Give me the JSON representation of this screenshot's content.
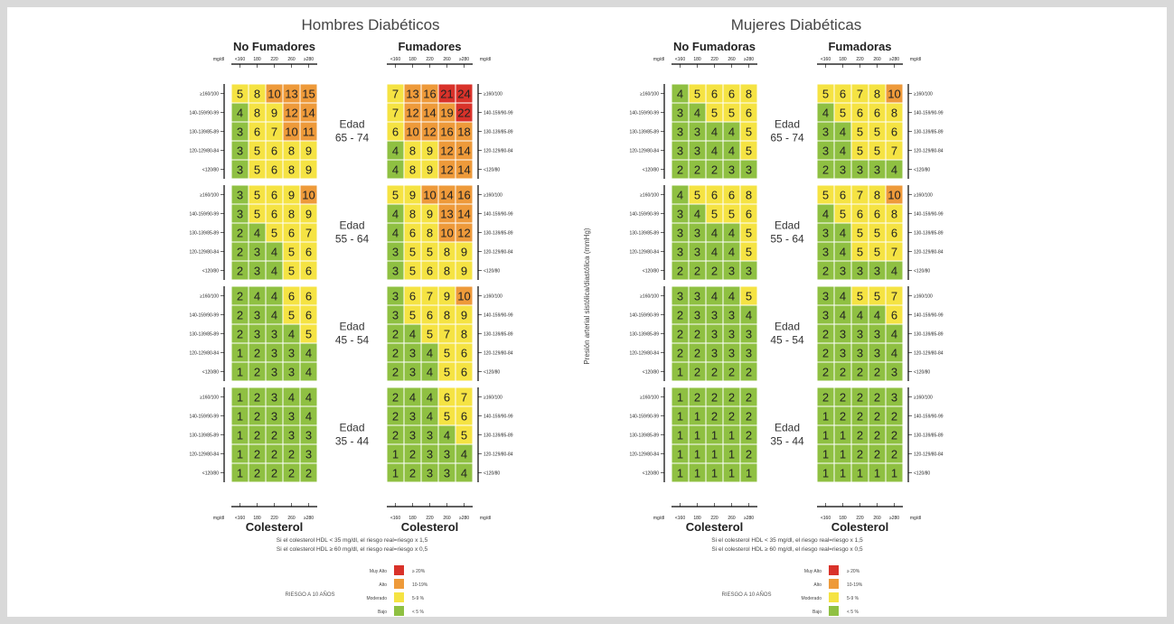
{
  "colors": {
    "red": "#d9322a",
    "orange": "#ee9a3a",
    "yellow": "#f5e343",
    "green": "#8fc042",
    "line": "#000",
    "text": "#333"
  },
  "labels": {
    "age_word": "Edad",
    "x_unit": "mg/dl",
    "x_ticks": [
      "<160",
      "180",
      "220",
      "260",
      "≥280"
    ],
    "axis_title": "Colesterol",
    "y_title": "Presión arterial sistólica/diastólica (mmHg)",
    "bp_left": [
      "≥160/100",
      "140-159/90-99",
      "130-139/85-89",
      "120-129/80-84",
      "<120/80"
    ],
    "bp_right": [
      "≥160/100",
      "140-159/90-99",
      "130-139/85-89",
      "120-129/80-84",
      "<120/80"
    ],
    "legend_title": "RIESGO A 10 AÑOS",
    "legend_items": [
      {
        "label": "Muy Alto",
        "range": "≥ 20%",
        "color": "red"
      },
      {
        "label": "Alto",
        "range": "10-19%",
        "color": "orange"
      },
      {
        "label": "Moderado",
        "range": "5-9 %",
        "color": "yellow"
      },
      {
        "label": "Bajo",
        "range": "< 5 %",
        "color": "green"
      }
    ]
  },
  "chart_data": [
    {
      "type": "heatmap",
      "title": "Hombres Diabéticos",
      "footnote_lines": [
        "Si el colesterol HDL < 35 mg/dl, el riesgo real=riesgo x 1,5",
        "Si el colesterol HDL ≥ 60 mg/dl, el riesgo real=riesgo x 0,5"
      ],
      "age_groups": [
        "65 - 74",
        "55 - 64",
        "45 - 54",
        "35 - 44"
      ],
      "panels": [
        {
          "name": "No Fumadores",
          "values": [
            [
              [
                5,
                8,
                10,
                13,
                15
              ],
              [
                4,
                8,
                9,
                12,
                14
              ],
              [
                3,
                6,
                7,
                10,
                11
              ],
              [
                3,
                5,
                6,
                8,
                9
              ],
              [
                3,
                5,
                6,
                8,
                9
              ]
            ],
            [
              [
                3,
                5,
                6,
                9,
                10
              ],
              [
                3,
                5,
                6,
                8,
                9
              ],
              [
                2,
                4,
                5,
                6,
                7
              ],
              [
                2,
                3,
                4,
                5,
                6
              ],
              [
                2,
                3,
                4,
                5,
                6
              ]
            ],
            [
              [
                2,
                4,
                4,
                6,
                6
              ],
              [
                2,
                3,
                4,
                5,
                6
              ],
              [
                2,
                3,
                3,
                4,
                5
              ],
              [
                1,
                2,
                3,
                3,
                4
              ],
              [
                1,
                2,
                3,
                3,
                4
              ]
            ],
            [
              [
                1,
                2,
                3,
                4,
                4
              ],
              [
                1,
                2,
                3,
                3,
                4
              ],
              [
                1,
                2,
                2,
                3,
                3
              ],
              [
                1,
                2,
                2,
                2,
                3
              ],
              [
                1,
                2,
                2,
                2,
                2
              ]
            ]
          ]
        },
        {
          "name": "Fumadores",
          "values": [
            [
              [
                7,
                13,
                16,
                21,
                24
              ],
              [
                7,
                12,
                14,
                19,
                22
              ],
              [
                6,
                10,
                12,
                16,
                18
              ],
              [
                4,
                8,
                9,
                12,
                14
              ],
              [
                4,
                8,
                9,
                12,
                14
              ]
            ],
            [
              [
                5,
                9,
                10,
                14,
                16
              ],
              [
                4,
                8,
                9,
                13,
                14
              ],
              [
                4,
                6,
                8,
                10,
                12
              ],
              [
                3,
                5,
                5,
                8,
                9
              ],
              [
                3,
                5,
                6,
                8,
                9
              ]
            ],
            [
              [
                3,
                6,
                7,
                9,
                10
              ],
              [
                3,
                5,
                6,
                8,
                9
              ],
              [
                2,
                4,
                5,
                7,
                8
              ],
              [
                2,
                3,
                4,
                5,
                6
              ],
              [
                2,
                3,
                4,
                5,
                6
              ]
            ],
            [
              [
                2,
                4,
                4,
                6,
                7
              ],
              [
                2,
                3,
                4,
                5,
                6
              ],
              [
                2,
                3,
                3,
                4,
                5
              ],
              [
                1,
                2,
                3,
                3,
                4
              ],
              [
                1,
                2,
                3,
                3,
                4
              ]
            ]
          ]
        }
      ]
    },
    {
      "type": "heatmap",
      "title": "Mujeres Diabéticas",
      "footnote_lines": [
        "Si el colesterol HDL < 35 mg/dl, el riesgo real=riesgo x 1,5",
        "Si el colesterol HDL ≥ 60 mg/dl, el riesgo real=riesgo x 0,5"
      ],
      "age_groups": [
        "65 - 74",
        "55 - 64",
        "45 - 54",
        "35 - 44"
      ],
      "panels": [
        {
          "name": "No Fumadoras",
          "values": [
            [
              [
                4,
                5,
                6,
                6,
                8
              ],
              [
                3,
                4,
                5,
                5,
                6
              ],
              [
                3,
                3,
                4,
                4,
                5
              ],
              [
                3,
                3,
                4,
                4,
                5
              ],
              [
                2,
                2,
                2,
                3,
                3
              ]
            ],
            [
              [
                4,
                5,
                6,
                6,
                8
              ],
              [
                3,
                4,
                5,
                5,
                6
              ],
              [
                3,
                3,
                4,
                4,
                5
              ],
              [
                3,
                3,
                4,
                4,
                5
              ],
              [
                2,
                2,
                2,
                3,
                3
              ]
            ],
            [
              [
                3,
                3,
                4,
                4,
                5
              ],
              [
                2,
                3,
                3,
                3,
                4
              ],
              [
                2,
                2,
                3,
                3,
                3
              ],
              [
                2,
                2,
                3,
                3,
                3
              ],
              [
                1,
                2,
                2,
                2,
                2
              ]
            ],
            [
              [
                1,
                2,
                2,
                2,
                2
              ],
              [
                1,
                1,
                2,
                2,
                2
              ],
              [
                1,
                1,
                1,
                1,
                2
              ],
              [
                1,
                1,
                1,
                1,
                2
              ],
              [
                1,
                1,
                1,
                1,
                1
              ]
            ]
          ]
        },
        {
          "name": "Fumadoras",
          "values": [
            [
              [
                5,
                6,
                7,
                8,
                10
              ],
              [
                4,
                5,
                6,
                6,
                8
              ],
              [
                3,
                4,
                5,
                5,
                6
              ],
              [
                3,
                4,
                5,
                5,
                7
              ],
              [
                2,
                3,
                3,
                3,
                4
              ]
            ],
            [
              [
                5,
                6,
                7,
                8,
                10
              ],
              [
                4,
                5,
                6,
                6,
                8
              ],
              [
                3,
                4,
                5,
                5,
                6
              ],
              [
                3,
                4,
                5,
                5,
                7
              ],
              [
                2,
                3,
                3,
                3,
                4
              ]
            ],
            [
              [
                3,
                4,
                5,
                5,
                7
              ],
              [
                3,
                4,
                4,
                4,
                6
              ],
              [
                2,
                3,
                3,
                3,
                4
              ],
              [
                2,
                3,
                3,
                3,
                4
              ],
              [
                2,
                2,
                2,
                2,
                3
              ]
            ],
            [
              [
                2,
                2,
                2,
                2,
                3
              ],
              [
                1,
                2,
                2,
                2,
                2
              ],
              [
                1,
                1,
                2,
                2,
                2
              ],
              [
                1,
                1,
                2,
                2,
                2
              ],
              [
                1,
                1,
                1,
                1,
                1
              ]
            ]
          ]
        }
      ]
    }
  ]
}
